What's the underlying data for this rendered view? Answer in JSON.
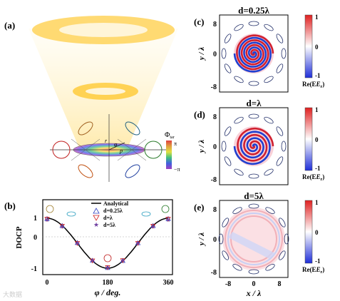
{
  "panels": {
    "a": {
      "label": "(a)",
      "phi_label": "Φ",
      "phi_sub": "tar",
      "cbar_top": "π",
      "cbar_bottom": "−π",
      "r_label": "r",
      "phi_sym": "φ",
      "p_label": "p"
    },
    "b": {
      "label": "(b)"
    },
    "c": {
      "label": "(c)",
      "title": "d=0.25λ"
    },
    "d": {
      "label": "(d)",
      "title": "d=λ"
    },
    "e": {
      "label": "(e)",
      "title": "d=5λ"
    }
  },
  "field_colorbar": {
    "top": "1",
    "mid": "0",
    "bottom": "-1",
    "label": "Re(E",
    "label_sub": "r",
    "label_end": ")"
  },
  "field_axes": {
    "ylabel": "y / λ",
    "xlabel": "x / λ",
    "yticks": [
      "8",
      "0",
      "-8"
    ],
    "xticks": [
      "-8",
      "0",
      "8"
    ]
  },
  "docp": {
    "ylabel": "DOCP",
    "xlabel": "φ / deg.",
    "yticks": [
      "1",
      "0",
      "-1"
    ],
    "xticks": [
      "0",
      "180",
      "360"
    ],
    "legend": [
      {
        "name": "Analytical"
      },
      {
        "name": "d=0.25λ"
      },
      {
        "name": "d=λ"
      },
      {
        "name": "d=5λ"
      }
    ]
  },
  "chart_data": {
    "type": "scatter",
    "xlabel": "φ / deg.",
    "ylabel": "DOCP",
    "xlim": [
      0,
      360
    ],
    "ylim": [
      -1.1,
      1.1
    ],
    "series": [
      {
        "name": "Analytical",
        "x": [
          0,
          45,
          90,
          135,
          180,
          225,
          270,
          315,
          360
        ],
        "values": [
          1.0,
          0.71,
          0.0,
          -0.71,
          -1.0,
          -0.71,
          0.0,
          0.71,
          1.0
        ]
      },
      {
        "name": "d=0.25λ",
        "x": [
          0,
          45,
          90,
          135,
          180,
          225,
          270,
          315,
          360
        ],
        "values": [
          0.98,
          0.7,
          0.02,
          -0.69,
          -0.98,
          -0.7,
          0.01,
          0.7,
          0.98
        ]
      },
      {
        "name": "d=λ",
        "x": [
          0,
          45,
          90,
          135,
          180,
          225,
          270,
          315,
          360
        ],
        "values": [
          0.97,
          0.69,
          0.0,
          -0.7,
          -0.97,
          -0.69,
          0.0,
          0.69,
          0.97
        ]
      },
      {
        "name": "d=5λ",
        "x": [
          0,
          45,
          90,
          135,
          180,
          225,
          270,
          315,
          360
        ],
        "values": [
          0.95,
          0.67,
          0.01,
          -0.67,
          -0.95,
          -0.67,
          0.01,
          0.67,
          0.95
        ]
      }
    ]
  },
  "watermark": "大数据"
}
